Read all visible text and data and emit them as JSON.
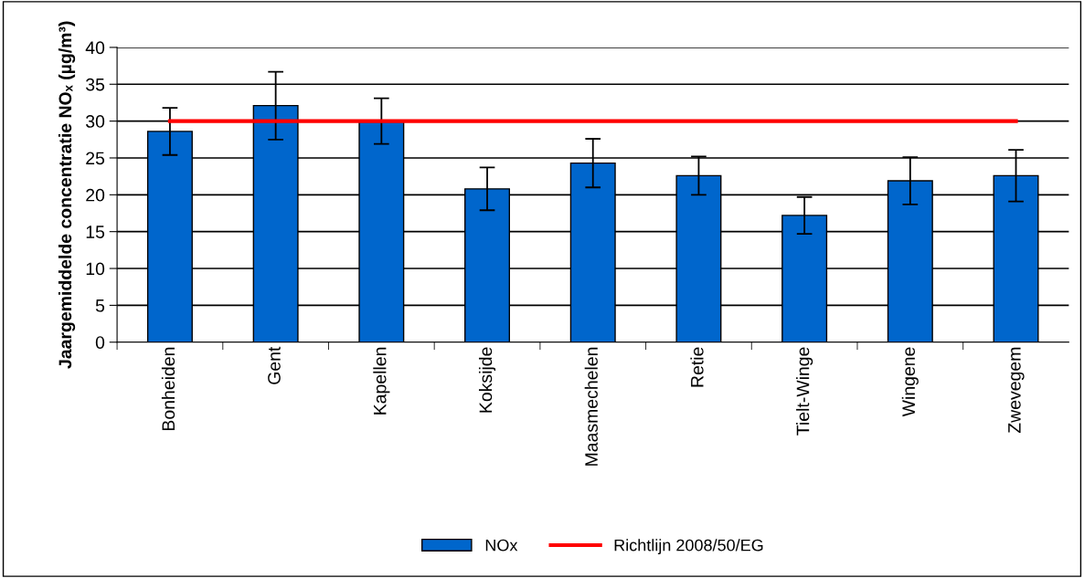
{
  "chart_data": {
    "type": "bar",
    "ylabel": "Jaargemiddelde concentratie NOₓ (µg/m³)",
    "categories": [
      "Bonheiden",
      "Gent",
      "Kapellen",
      "Koksijde",
      "Maasmechelen",
      "Retie",
      "Tielt-Winge",
      "Wingene",
      "Zwevegem"
    ],
    "series": [
      {
        "name": "NOx",
        "color": "#0066cc",
        "values": [
          28.6,
          32.1,
          30.0,
          20.8,
          24.3,
          22.6,
          17.2,
          21.9,
          22.6
        ],
        "errors": [
          3.2,
          4.6,
          3.1,
          2.9,
          3.3,
          2.6,
          2.5,
          3.2,
          3.5
        ]
      },
      {
        "name": "Richtlijn 2008/50/EG",
        "type": "line",
        "color": "#ff0000",
        "values": [
          30,
          30,
          30,
          30,
          30,
          30,
          30,
          30,
          30
        ]
      }
    ],
    "ylim": [
      0,
      40
    ],
    "yticks": [
      0,
      5,
      10,
      15,
      20,
      25,
      30,
      35,
      40
    ],
    "grid": "y",
    "legend": "bottom"
  }
}
